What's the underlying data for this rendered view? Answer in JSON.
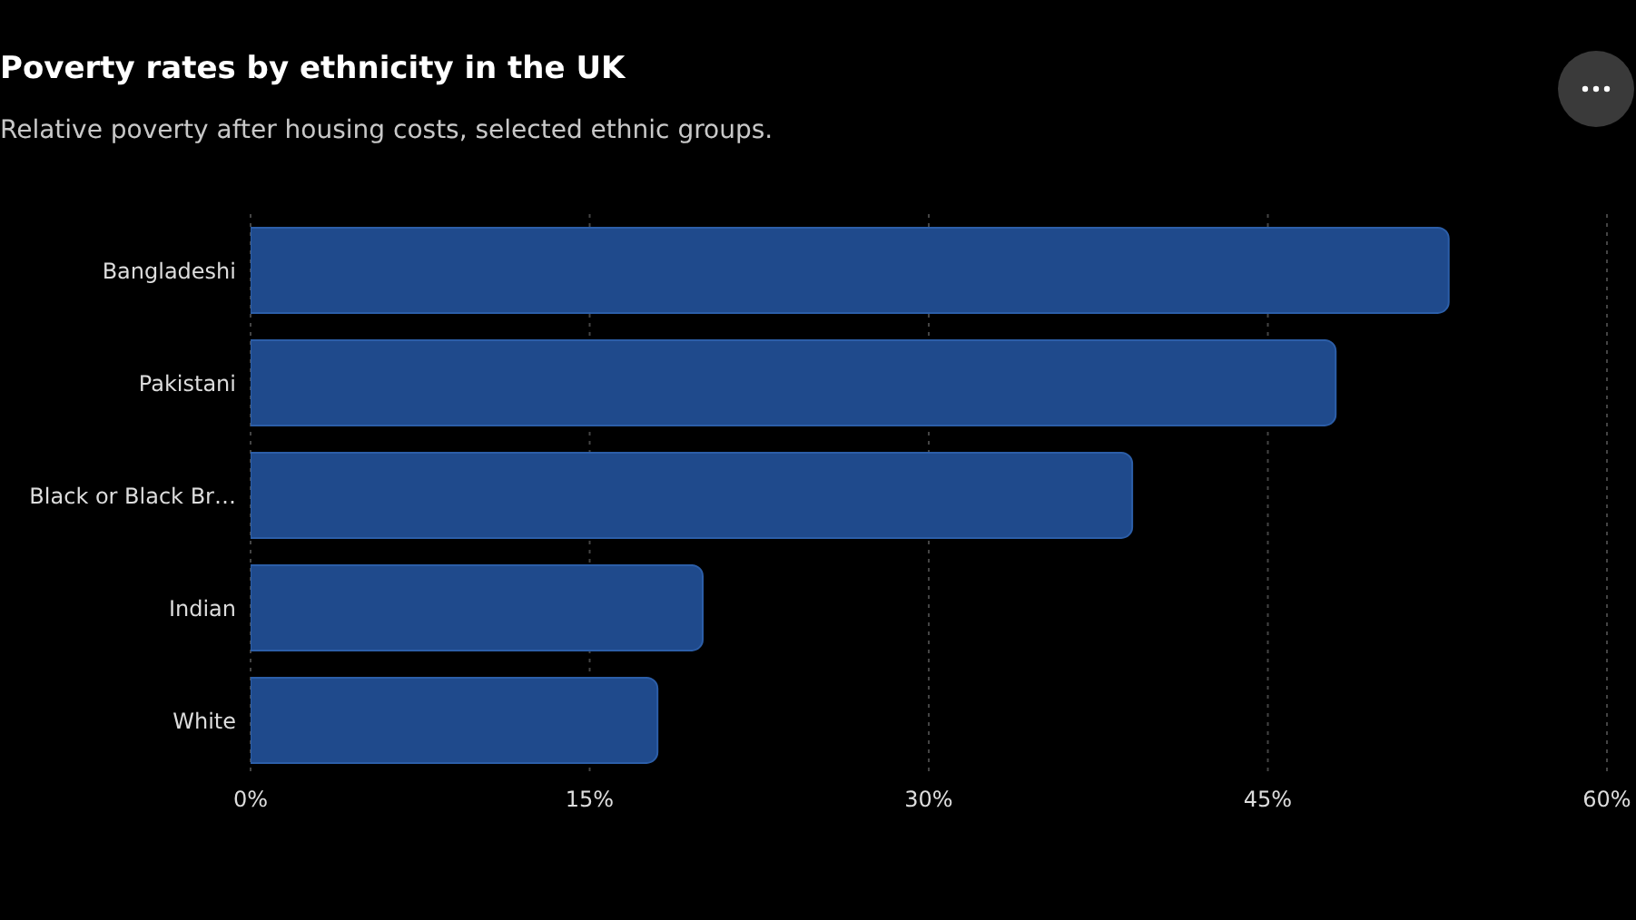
{
  "chart_data": {
    "type": "bar",
    "orientation": "horizontal",
    "title": "Poverty rates by ethnicity in the UK",
    "subtitle": "Relative poverty after housing costs, selected ethnic groups.",
    "categories": [
      "Bangladeshi",
      "Pakistani",
      "Black or Black Br…",
      "Indian",
      "White"
    ],
    "values": [
      53,
      48,
      39,
      20,
      18
    ],
    "color": "#1f4a8c",
    "xlim": [
      0,
      60
    ],
    "xticks": [
      {
        "value": 0,
        "label": "0%"
      },
      {
        "value": 15,
        "label": "15%"
      },
      {
        "value": 30,
        "label": "30%"
      },
      {
        "value": 45,
        "label": "45%"
      },
      {
        "value": 60,
        "label": "60%"
      }
    ],
    "grid": "x"
  }
}
